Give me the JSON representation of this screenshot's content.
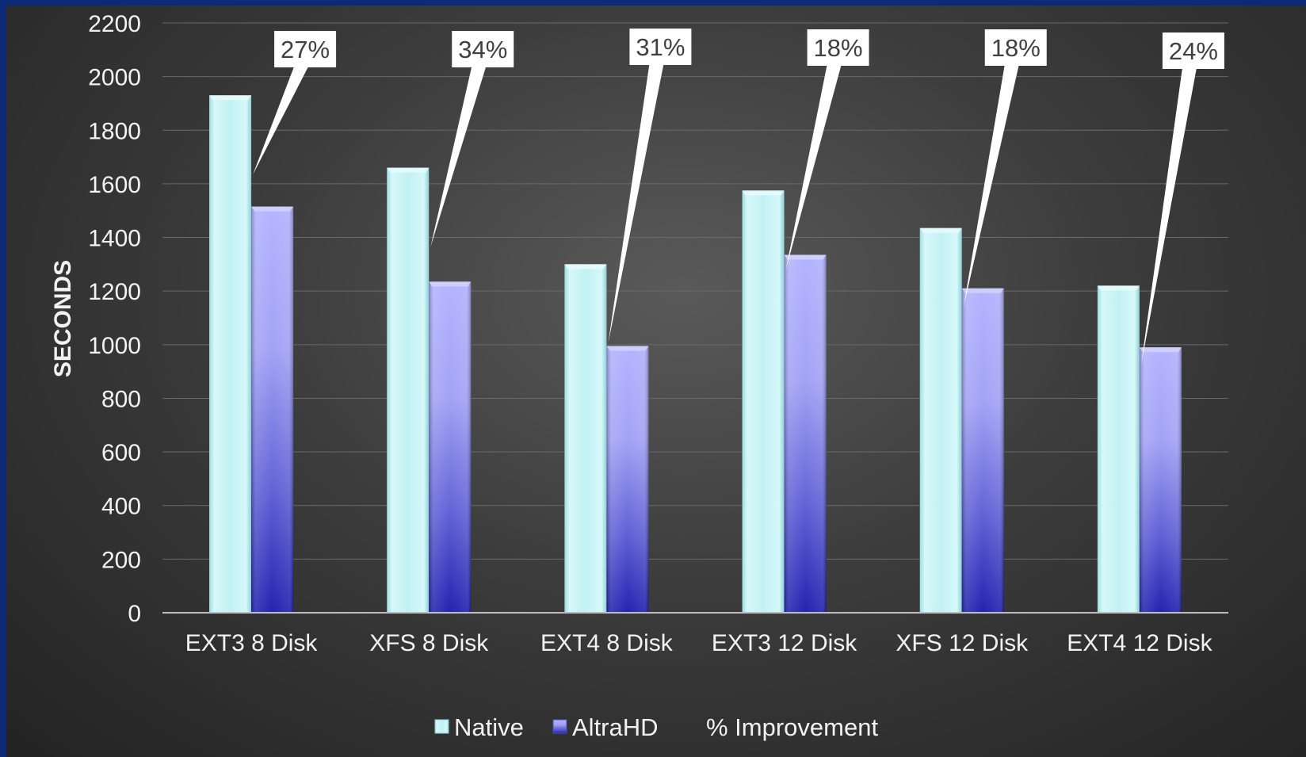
{
  "chart_data": {
    "type": "bar",
    "ylabel": "SECONDS",
    "ylim": [
      0,
      2200
    ],
    "yticks": [
      0,
      200,
      400,
      600,
      800,
      1000,
      1200,
      1400,
      1600,
      1800,
      2000,
      2200
    ],
    "grid": true,
    "legend_position": "bottom",
    "categories": [
      "EXT3 8 Disk",
      "XFS 8 Disk",
      "EXT4 8 Disk",
      "EXT3 12 Disk",
      "XFS 12 Disk",
      "EXT4 12 Disk"
    ],
    "series": [
      {
        "name": "Native",
        "values": [
          1930,
          1660,
          1300,
          1575,
          1435,
          1220
        ],
        "color": "#c4f2f4"
      },
      {
        "name": "AltraHD",
        "values": [
          1515,
          1235,
          995,
          1335,
          1210,
          990
        ],
        "color": "#7a78e6"
      }
    ],
    "improvement": {
      "name": "% Improvement",
      "labels": [
        "27%",
        "34%",
        "31%",
        "18%",
        "18%",
        "24%"
      ]
    }
  }
}
